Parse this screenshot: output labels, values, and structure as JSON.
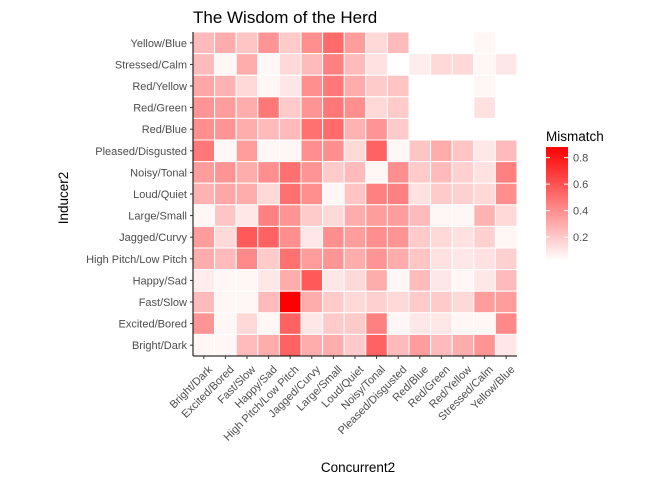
{
  "chart_data": {
    "type": "heatmap",
    "title": "The Wisdom of the Herd",
    "xlabel": "Concurrent2",
    "ylabel": "Inducer2",
    "x_categories": [
      "Bright/Dark",
      "Excited/Bored",
      "Fast/Slow",
      "Happy/Sad",
      "High Pitch/Low Pitch",
      "Jagged/Curvy",
      "Large/Small",
      "Loud/Quiet",
      "Noisy/Tonal",
      "Pleased/Disgusted",
      "Red/Blue",
      "Red/Green",
      "Red/Yellow",
      "Stressed/Calm",
      "Yellow/Blue"
    ],
    "y_categories": [
      "Yellow/Blue",
      "Stressed/Calm",
      "Red/Yellow",
      "Red/Green",
      "Red/Blue",
      "Pleased/Disgusted",
      "Noisy/Tonal",
      "Loud/Quiet",
      "Large/Small",
      "Jagged/Curvy",
      "High Pitch/Low Pitch",
      "Happy/Sad",
      "Fast/Slow",
      "Excited/Bored",
      "Bright/Dark"
    ],
    "values": [
      [
        0.25,
        0.3,
        0.22,
        0.38,
        0.2,
        0.4,
        0.52,
        0.35,
        0.15,
        0.25,
        null,
        null,
        null,
        0.05,
        null
      ],
      [
        0.25,
        0.05,
        0.3,
        0.05,
        0.15,
        0.25,
        0.45,
        0.25,
        0.12,
        null,
        0.08,
        0.15,
        0.15,
        0.05,
        0.1
      ],
      [
        0.32,
        0.28,
        0.15,
        0.05,
        0.1,
        0.4,
        0.48,
        0.3,
        0.2,
        0.22,
        null,
        null,
        null,
        0.05,
        null
      ],
      [
        0.38,
        0.35,
        0.3,
        0.48,
        0.2,
        0.38,
        0.48,
        0.4,
        0.15,
        0.2,
        null,
        null,
        null,
        0.12,
        null
      ],
      [
        0.4,
        0.38,
        0.3,
        0.25,
        0.25,
        0.5,
        0.52,
        0.28,
        0.38,
        0.2,
        null,
        null,
        null,
        null,
        null
      ],
      [
        0.48,
        0.05,
        0.35,
        0.05,
        0.05,
        0.4,
        0.4,
        0.15,
        0.55,
        0.05,
        0.22,
        0.3,
        0.22,
        0.1,
        0.25
      ],
      [
        0.35,
        0.38,
        0.3,
        0.4,
        0.5,
        0.38,
        0.2,
        0.25,
        0.05,
        0.4,
        0.2,
        0.25,
        0.18,
        0.12,
        0.45
      ],
      [
        0.28,
        0.32,
        0.3,
        0.15,
        0.5,
        0.4,
        0.05,
        0.22,
        0.45,
        0.45,
        0.12,
        0.2,
        0.18,
        0.15,
        0.4
      ],
      [
        0.05,
        0.22,
        0.1,
        0.45,
        0.38,
        0.2,
        0.15,
        0.3,
        0.35,
        0.35,
        0.25,
        0.05,
        0.05,
        0.28,
        0.15
      ],
      [
        0.35,
        0.15,
        0.58,
        0.55,
        0.4,
        0.1,
        0.4,
        0.35,
        0.4,
        0.38,
        0.2,
        0.15,
        0.12,
        0.18,
        0.05
      ],
      [
        0.3,
        0.25,
        0.42,
        0.2,
        0.5,
        0.35,
        0.38,
        0.3,
        0.38,
        0.3,
        0.22,
        0.12,
        0.1,
        0.12,
        0.18
      ],
      [
        0.08,
        0.05,
        0.05,
        0.1,
        0.3,
        0.58,
        0.1,
        0.15,
        0.3,
        0.05,
        0.25,
        0.1,
        0.05,
        0.1,
        0.25
      ],
      [
        0.25,
        0.05,
        0.05,
        0.25,
        0.88,
        0.3,
        0.2,
        0.15,
        0.18,
        0.15,
        0.2,
        0.2,
        0.15,
        0.35,
        0.35
      ],
      [
        0.38,
        0.05,
        0.15,
        0.05,
        0.55,
        0.1,
        0.2,
        0.2,
        0.45,
        0.05,
        0.1,
        0.1,
        0.05,
        0.05,
        0.42
      ],
      [
        0.05,
        0.05,
        0.25,
        0.3,
        0.55,
        0.3,
        0.3,
        0.2,
        0.55,
        0.25,
        0.35,
        0.25,
        0.3,
        0.38,
        0.1
      ]
    ],
    "color_scale": {
      "low": "#ffffff",
      "high": "#ff0000",
      "range": [
        0.02,
        0.88
      ]
    },
    "legend": {
      "title": "Mismatch",
      "ticks": [
        0.2,
        0.4,
        0.6,
        0.8
      ],
      "ticks_label": [
        "0.2",
        "0.4",
        "0.6",
        "0.8"
      ],
      "placement": "right"
    },
    "grid": false
  }
}
